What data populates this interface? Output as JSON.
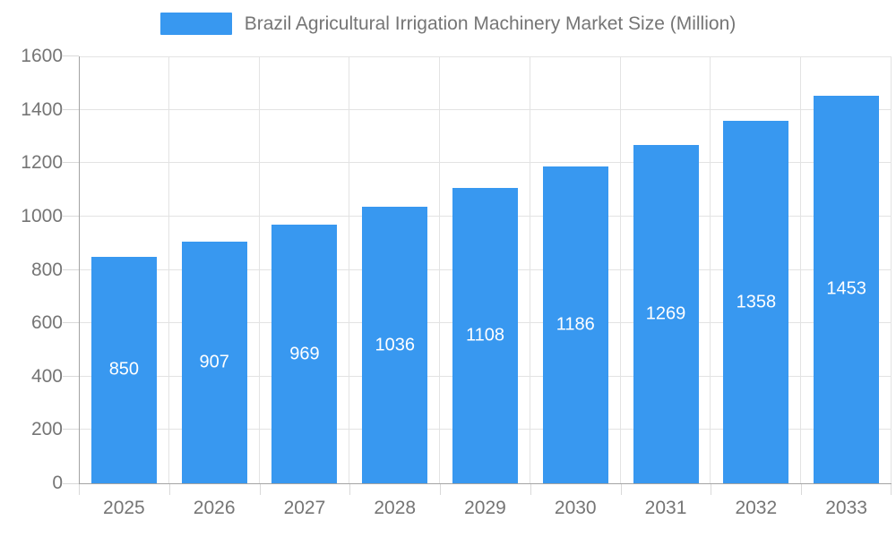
{
  "chart_data": {
    "type": "bar",
    "title": "Brazil Agricultural Irrigation Machinery Market Size (Million)",
    "categories": [
      "2025",
      "2026",
      "2027",
      "2028",
      "2029",
      "2030",
      "2031",
      "2032",
      "2033"
    ],
    "values": [
      850,
      907,
      969,
      1036,
      1108,
      1186,
      1269,
      1358,
      1453
    ],
    "xlabel": "",
    "ylabel": "",
    "ylim": [
      0,
      1600
    ],
    "yticks": [
      0,
      200,
      400,
      600,
      800,
      1000,
      1200,
      1400,
      1600
    ],
    "grid": "on",
    "legend_position": "top-center",
    "legend_entries": [
      "Brazil Agricultural Irrigation Machinery Market Size (Million)"
    ],
    "bar_labels_shown": true
  },
  "colors": {
    "bar": "#3898f0",
    "bar_label": "#ffffff",
    "grid": "#e3e3e3",
    "axis": "#a3a3a3",
    "tick": "#d9d9d9",
    "text": "#757575",
    "background": "#ffffff"
  }
}
